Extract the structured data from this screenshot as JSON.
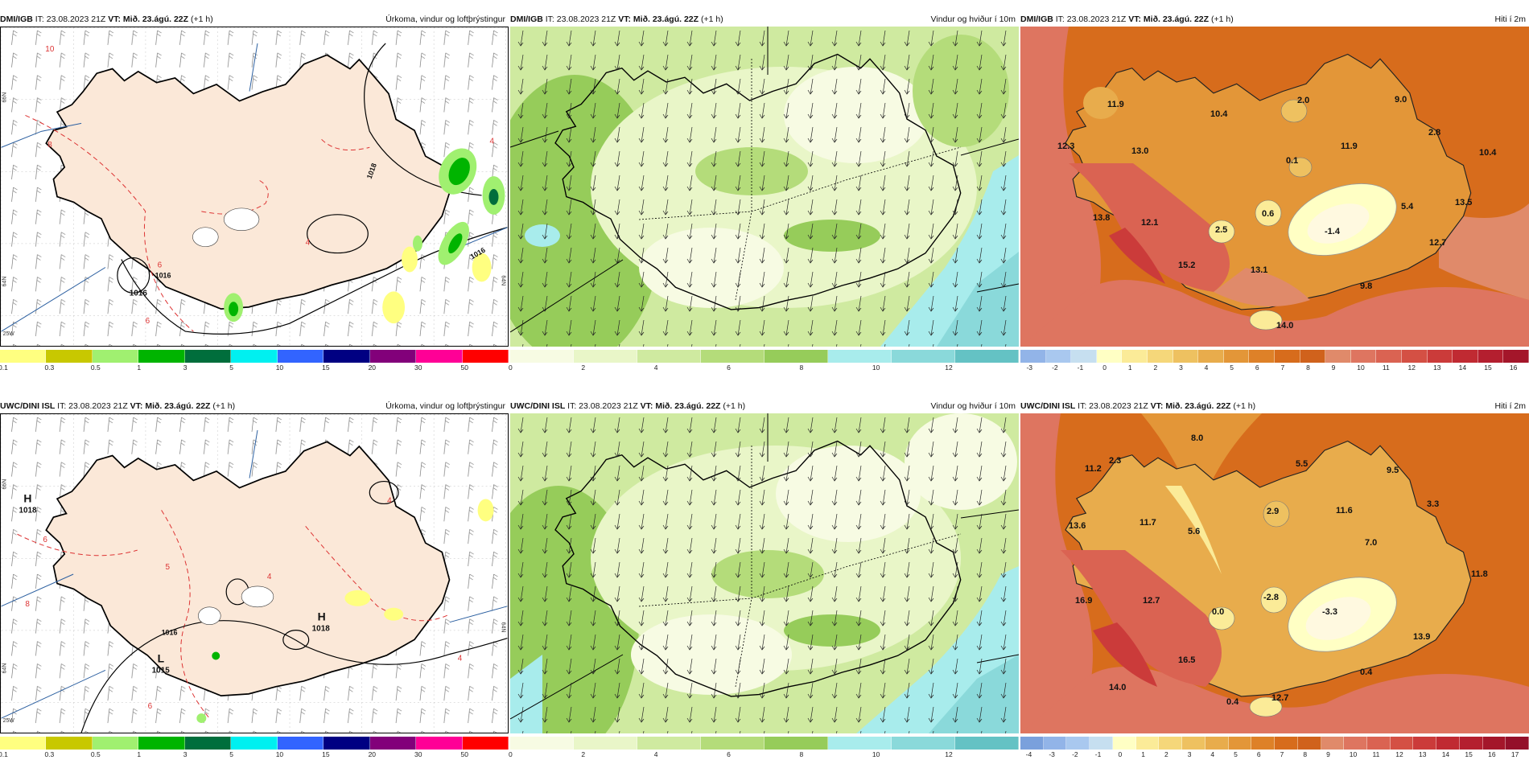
{
  "panels": [
    {
      "id": "p1",
      "source": "DMI/IGB",
      "init": "IT: 23.08.2023 21Z",
      "valid": "VT: Mið. 23.ágú. 22Z",
      "lead": "(+1 h)",
      "title": "Úrkoma, vindur og loftþrýstingur",
      "isobar_labels": [
        "1016",
        "1018",
        "1016",
        "1016"
      ],
      "pressure_centers": [],
      "red_labels": [
        "10",
        "8",
        "6",
        "4",
        "6",
        "4"
      ],
      "lat_labels": [
        "66N",
        "64N",
        "25W"
      ],
      "legend_ticks": [
        "0.1",
        "0.3",
        "0.5",
        "1",
        "3",
        "5",
        "10",
        "15",
        "20",
        "30",
        "50"
      ]
    },
    {
      "id": "p2",
      "source": "DMI/IGB",
      "init": "IT: 23.08.2023 21Z",
      "valid": "VT: Mið. 23.ágú. 22Z",
      "lead": "(+1 h)",
      "title": "Vindur og hviður í 10m",
      "legend_ticks": [
        "0",
        "2",
        "4",
        "6",
        "8",
        "10",
        "12"
      ]
    },
    {
      "id": "p3",
      "source": "DMI/IGB",
      "init": "IT: 23.08.2023 21Z",
      "valid": "VT: Mið. 23.ágú. 22Z",
      "lead": "(+1 h)",
      "title": "Hiti í 2m",
      "temp_labels": [
        "11.9",
        "10.4",
        "2.0",
        "9.0",
        "12.3",
        "13.0",
        "0.1",
        "11.9",
        "2.8",
        "10.4",
        "13.8",
        "12.1",
        "2.5",
        "0.6",
        "5.4",
        "13.5",
        "-1.4",
        "12.7",
        "15.2",
        "13.1",
        "9.8",
        "14.0"
      ],
      "legend_ticks": [
        "-3",
        "-2",
        "-1",
        "0",
        "1",
        "2",
        "3",
        "4",
        "5",
        "6",
        "7",
        "8",
        "9",
        "10",
        "11",
        "12",
        "13",
        "14",
        "15",
        "16"
      ]
    },
    {
      "id": "p4",
      "source": "UWC/DINI ISL",
      "init": "IT: 23.08.2023 21Z",
      "valid": "VT: Mið. 23.ágú. 22Z",
      "lead": "(+1 h)",
      "title": "Úrkoma, vindur og loftþrýstingur",
      "isobar_labels": [
        "1016"
      ],
      "pressure_centers": [
        {
          "letter": "H",
          "value": "1018"
        },
        {
          "letter": "H",
          "value": "1018"
        },
        {
          "letter": "L",
          "value": "1015"
        }
      ],
      "red_labels": [
        "6",
        "8",
        "5",
        "4",
        "4",
        "6",
        "4"
      ],
      "lat_labels": [
        "66N",
        "64N",
        "25W"
      ],
      "legend_ticks": [
        "0.1",
        "0.3",
        "0.5",
        "1",
        "3",
        "5",
        "10",
        "15",
        "20",
        "30",
        "50"
      ]
    },
    {
      "id": "p5",
      "source": "UWC/DINI ISL",
      "init": "IT: 23.08.2023 21Z",
      "valid": "VT: Mið. 23.ágú. 22Z",
      "lead": "(+1 h)",
      "title": "Vindur og hviður í 10m",
      "legend_ticks": [
        "0",
        "2",
        "4",
        "6",
        "8",
        "10",
        "12"
      ]
    },
    {
      "id": "p6",
      "source": "UWC/DINI ISL",
      "init": "IT: 23.08.2023 21Z",
      "valid": "VT: Mið. 23.ágú. 22Z",
      "lead": "(+1 h)",
      "title": "Hiti í 2m",
      "temp_labels": [
        "8.0",
        "11.2",
        "2.3",
        "5.5",
        "9.5",
        "13.6",
        "11.7",
        "2.9",
        "11.6",
        "3.3",
        "5.6",
        "7.0",
        "16.9",
        "12.7",
        "0.0",
        "-2.8",
        "-3.3",
        "11.8",
        "13.9",
        "16.5",
        "0.4",
        "14.0",
        "12.7",
        "0.4"
      ],
      "legend_ticks": [
        "-4",
        "-3",
        "-2",
        "-1",
        "0",
        "1",
        "2",
        "3",
        "4",
        "5",
        "6",
        "7",
        "8",
        "9",
        "10",
        "11",
        "12",
        "13",
        "14",
        "15",
        "16",
        "17"
      ]
    }
  ],
  "legends": {
    "precip_colors": [
      "#ffff80",
      "#c8c800",
      "#a0f070",
      "#00b400",
      "#006e3c",
      "#00f0f0",
      "#3264ff",
      "#000082",
      "#82007a",
      "#ff0096",
      "#ff0000"
    ],
    "wind_colors": [
      "#f7fbe3",
      "#e9f6c8",
      "#cfeaa0",
      "#b4dc7a",
      "#96cc5a",
      "#a8ecec",
      "#8ad9da",
      "#64c2c4"
    ],
    "temp_colors_top": [
      "#92b4e8",
      "#a9c8ef",
      "#c6dff0",
      "#ffffc4",
      "#fbeb98",
      "#f5d77a",
      "#eec160",
      "#e8ac4c",
      "#e39638",
      "#de8128",
      "#d76c1c",
      "#d0621c",
      "#e08a6a",
      "#de7560",
      "#da6352",
      "#d45044",
      "#cb3b3a",
      "#c02a32",
      "#b41f2f",
      "#a4162a"
    ],
    "temp_colors_bottom": [
      "#7aa0dc",
      "#92b4e8",
      "#a9c8ef",
      "#c6dff0",
      "#ffffc4",
      "#fbeb98",
      "#f5d77a",
      "#eec160",
      "#e8ac4c",
      "#e39638",
      "#de8128",
      "#d76c1c",
      "#d0621c",
      "#e08a6a",
      "#de7560",
      "#da6352",
      "#d45044",
      "#cb3b3a",
      "#c02a32",
      "#b41f2f",
      "#a4162a",
      "#94102a"
    ]
  }
}
